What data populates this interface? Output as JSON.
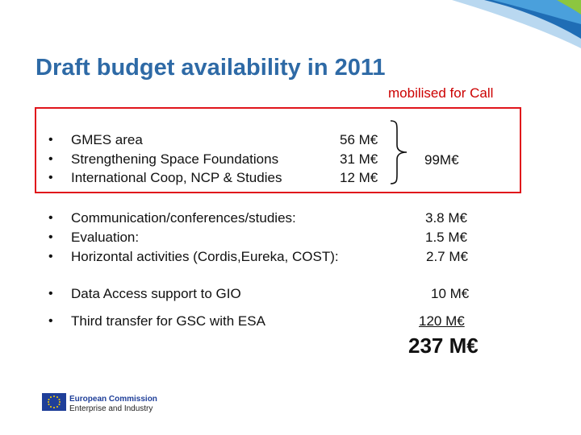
{
  "slide": {
    "title": "Draft budget availability in 2011",
    "mobilised_label": "mobilised for Call",
    "bullet_char": "•",
    "group1": [
      {
        "label": "GMES area",
        "amount": "56 M€"
      },
      {
        "label": "Strengthening Space Foundations",
        "amount": "31 M€"
      },
      {
        "label": "International Coop, NCP & Studies",
        "amount": "12 M€"
      }
    ],
    "group1_total": "99M€",
    "group2": [
      {
        "label": "Communication/conferences/studies:",
        "amount": "3.8 M€"
      },
      {
        "label": "Evaluation:",
        "amount": "1.5 M€"
      },
      {
        "label": "Horizontal activities (Cordis,Eureka, COST):",
        "amount": "2.7 M€"
      }
    ],
    "data_access": {
      "label": "Data Access support to GIO",
      "amount": "10 M€"
    },
    "third_transfer": {
      "label": "Third transfer for GSC with ESA",
      "amount": "120 M€"
    },
    "grand_total": "237 M€",
    "logo": {
      "line1": "European Commission",
      "line2": "Enterprise and Industry"
    }
  },
  "colors": {
    "title": "#2e6aa6",
    "accent_red": "#cc0000",
    "frame_red": "#e0151b",
    "deco_blue": "#1f6db5",
    "deco_green": "#8cc63f"
  }
}
